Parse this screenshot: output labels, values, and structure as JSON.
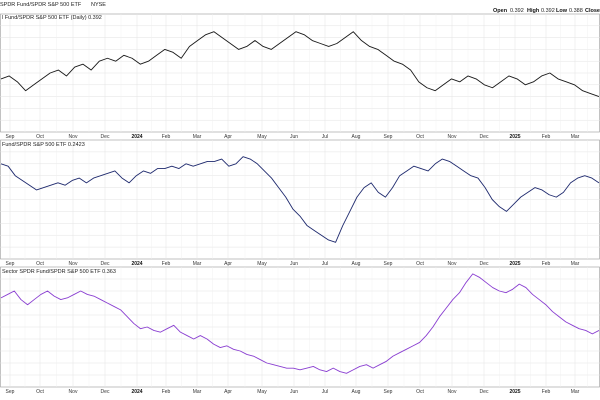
{
  "header": {
    "title": "SPDR Fund/SPDR S&P 500 ETF",
    "exchange": "NYSE",
    "ohlc": [
      {
        "label": "Open",
        "value": "0.392"
      },
      {
        "label": "High",
        "value": "0.392"
      },
      {
        "label": "Low",
        "value": "0.388"
      },
      {
        "label": "Close",
        "value": ""
      }
    ]
  },
  "colors": {
    "panel1": "#1a1a1a",
    "panel2": "#1f2a6e",
    "panel3": "#8a3fd1",
    "grid": "#e3e3e3",
    "axis": "#999999"
  },
  "chart_data": [
    {
      "type": "line",
      "label": "l Fund/SPDR S&P 500 ETF (Daily) 0.392",
      "x_ticks": [
        "Sep",
        "Oct",
        "Nov",
        "Dec",
        "2024",
        "Feb",
        "Mar",
        "Apr",
        "May",
        "Jun",
        "Jul",
        "Aug",
        "Sep",
        "Oct",
        "Nov",
        "Dec",
        "2025",
        "Feb",
        "Mar"
      ],
      "x_start": "2023-09",
      "x_end": "2025-03",
      "ylim": [
        0.38,
        0.42
      ],
      "last_value": 0.392,
      "values": [
        0.398,
        0.399,
        0.397,
        0.394,
        0.396,
        0.398,
        0.4,
        0.401,
        0.399,
        0.402,
        0.403,
        0.401,
        0.404,
        0.405,
        0.404,
        0.406,
        0.405,
        0.403,
        0.404,
        0.406,
        0.408,
        0.407,
        0.405,
        0.409,
        0.411,
        0.413,
        0.414,
        0.412,
        0.41,
        0.408,
        0.409,
        0.411,
        0.409,
        0.408,
        0.41,
        0.412,
        0.414,
        0.413,
        0.411,
        0.41,
        0.409,
        0.41,
        0.412,
        0.414,
        0.411,
        0.409,
        0.408,
        0.406,
        0.404,
        0.403,
        0.401,
        0.397,
        0.395,
        0.394,
        0.396,
        0.398,
        0.397,
        0.399,
        0.398,
        0.396,
        0.395,
        0.397,
        0.399,
        0.398,
        0.396,
        0.397,
        0.399,
        0.4,
        0.398,
        0.397,
        0.396,
        0.394,
        0.393,
        0.392
      ]
    },
    {
      "type": "line",
      "label": "Fund/SPDR S&P 500 ETF 0.2423",
      "x_ticks": [
        "Sep",
        "Oct",
        "Nov",
        "Dec",
        "2024",
        "Feb",
        "Mar",
        "Apr",
        "May",
        "Jun",
        "Jul",
        "Aug",
        "Sep",
        "Oct",
        "Nov",
        "Dec",
        "2025",
        "Feb",
        "Mar"
      ],
      "x_start": "2023-09",
      "x_end": "2025-03",
      "ylim": [
        0.21,
        0.26
      ],
      "last_value": 0.2423,
      "values": [
        0.25,
        0.249,
        0.245,
        0.243,
        0.241,
        0.239,
        0.24,
        0.241,
        0.242,
        0.241,
        0.243,
        0.244,
        0.242,
        0.244,
        0.245,
        0.246,
        0.247,
        0.244,
        0.242,
        0.245,
        0.247,
        0.246,
        0.248,
        0.248,
        0.249,
        0.248,
        0.25,
        0.249,
        0.25,
        0.251,
        0.251,
        0.252,
        0.249,
        0.25,
        0.253,
        0.252,
        0.25,
        0.247,
        0.244,
        0.24,
        0.236,
        0.231,
        0.228,
        0.224,
        0.222,
        0.22,
        0.218,
        0.217,
        0.224,
        0.23,
        0.236,
        0.24,
        0.242,
        0.238,
        0.236,
        0.24,
        0.245,
        0.247,
        0.249,
        0.248,
        0.247,
        0.25,
        0.252,
        0.251,
        0.249,
        0.247,
        0.245,
        0.244,
        0.24,
        0.235,
        0.232,
        0.23,
        0.233,
        0.236,
        0.238,
        0.24,
        0.239,
        0.237,
        0.236,
        0.238,
        0.242,
        0.244,
        0.245,
        0.244,
        0.242
      ]
    },
    {
      "type": "line",
      "label": "Sector SPDR Fund/SPDR S&P 500 ETF 0.363",
      "x_ticks": [
        "Sep",
        "Oct",
        "Nov",
        "Dec",
        "2024",
        "Feb",
        "Mar",
        "Apr",
        "May",
        "Jun",
        "Jul",
        "Aug",
        "Sep",
        "Oct",
        "Nov",
        "Dec",
        "2025",
        "Feb",
        "Mar"
      ],
      "x_start": "2023-09",
      "x_end": "2025-03",
      "ylim": [
        0.33,
        0.4
      ],
      "last_value": 0.363,
      "values": [
        0.382,
        0.384,
        0.386,
        0.381,
        0.378,
        0.381,
        0.384,
        0.386,
        0.383,
        0.381,
        0.382,
        0.384,
        0.386,
        0.384,
        0.383,
        0.381,
        0.379,
        0.377,
        0.375,
        0.371,
        0.367,
        0.364,
        0.365,
        0.363,
        0.362,
        0.364,
        0.366,
        0.362,
        0.36,
        0.358,
        0.36,
        0.358,
        0.355,
        0.353,
        0.354,
        0.352,
        0.351,
        0.349,
        0.348,
        0.346,
        0.344,
        0.343,
        0.342,
        0.341,
        0.341,
        0.34,
        0.341,
        0.342,
        0.34,
        0.339,
        0.341,
        0.339,
        0.338,
        0.34,
        0.342,
        0.343,
        0.341,
        0.343,
        0.345,
        0.348,
        0.35,
        0.352,
        0.354,
        0.356,
        0.36,
        0.365,
        0.371,
        0.376,
        0.381,
        0.385,
        0.391,
        0.396,
        0.394,
        0.391,
        0.388,
        0.386,
        0.385,
        0.387,
        0.39,
        0.388,
        0.384,
        0.381,
        0.378,
        0.374,
        0.371,
        0.368,
        0.366,
        0.364,
        0.363,
        0.361,
        0.363
      ]
    }
  ]
}
